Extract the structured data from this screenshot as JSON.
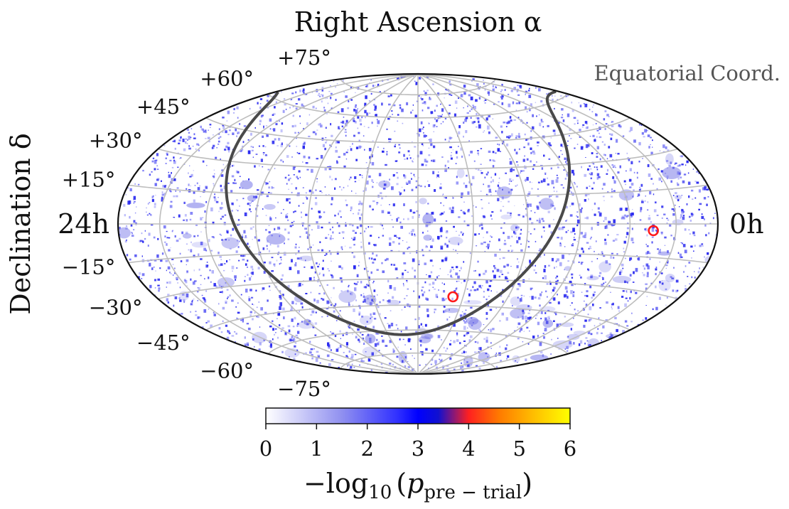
{
  "title": "Right Ascension α",
  "corner_label": "Equatorial Coord.",
  "ra_left_label": "24h",
  "ra_right_label": "0h",
  "y_axis_label": "Declination δ",
  "dec_labels": [
    {
      "deg": 75,
      "text": "+75°"
    },
    {
      "deg": 60,
      "text": "+60°"
    },
    {
      "deg": 45,
      "text": "+45°"
    },
    {
      "deg": 30,
      "text": "+30°"
    },
    {
      "deg": 15,
      "text": "+15°"
    },
    {
      "deg": -15,
      "text": "−15°"
    },
    {
      "deg": -30,
      "text": "−30°"
    },
    {
      "deg": -45,
      "text": "−45°"
    },
    {
      "deg": -60,
      "text": "−60°"
    },
    {
      "deg": -75,
      "text": "−75°"
    }
  ],
  "projection": "hammer-aitoff",
  "meridian_step_hours": 2,
  "parallel_step_deg": 15,
  "hotspots": [
    {
      "ra_h": 3.0,
      "dec_deg": -3.0
    },
    {
      "ra_h": 10.45,
      "dec_deg": -40.0
    }
  ],
  "galactic_plane": true,
  "colorbar": {
    "min": 0,
    "max": 6,
    "ticks": [
      "0",
      "1",
      "2",
      "3",
      "4",
      "5",
      "6"
    ],
    "label_main": "−log",
    "label_sub": "10",
    "label_paren_open": "(",
    "label_p": "p",
    "label_p_sub": "pre − trial",
    "label_paren_close": ")",
    "stops": [
      {
        "v": 0.0,
        "color": "#ffffff"
      },
      {
        "v": 1.5,
        "color": "#9090f0"
      },
      {
        "v": 2.6,
        "color": "#3030ff"
      },
      {
        "v": 3.0,
        "color": "#0000ff"
      },
      {
        "v": 3.4,
        "color": "#1010d0"
      },
      {
        "v": 4.0,
        "color": "#ff2020"
      },
      {
        "v": 4.6,
        "color": "#ff7a00"
      },
      {
        "v": 5.3,
        "color": "#ffc000"
      },
      {
        "v": 6.0,
        "color": "#ffff00"
      }
    ]
  },
  "colors": {
    "grid": "#bdbdbd",
    "galactic_plane": "#4a4a4a",
    "hotspot": "#ff1a1a",
    "speckle": "#2a2af0",
    "corner_label": "#555555"
  }
}
